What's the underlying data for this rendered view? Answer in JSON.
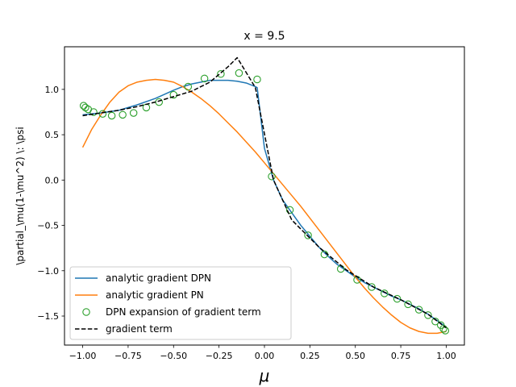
{
  "chart_data": {
    "type": "line",
    "title": "x = 9.5",
    "xlabel": "μ",
    "ylabel": "\\partial_\\mu(1-\\mu^2) \\: \\psi",
    "xlim": [
      -1.1,
      1.1
    ],
    "ylim": [
      -1.82,
      1.47
    ],
    "xticks": [
      -1.0,
      -0.75,
      -0.5,
      -0.25,
      0.0,
      0.25,
      0.5,
      0.75,
      1.0
    ],
    "xtick_labels": [
      "−1.00",
      "−0.75",
      "−0.50",
      "−0.25",
      "0.00",
      "0.25",
      "0.50",
      "0.75",
      "1.00"
    ],
    "yticks": [
      -1.5,
      -1.0,
      -0.5,
      0.0,
      0.5,
      1.0
    ],
    "ytick_labels": [
      "−1.5",
      "−1.0",
      "−0.5",
      "0.0",
      "0.5",
      "1.0"
    ],
    "grid": false,
    "legend_position": "lower-left",
    "series": [
      {
        "name": "analytic gradient DPN",
        "kind": "line",
        "style": "solid",
        "color": "#1f77b4",
        "x": [
          -1.0,
          -0.9,
          -0.8,
          -0.7,
          -0.6,
          -0.5,
          -0.45,
          -0.4,
          -0.35,
          -0.3,
          -0.25,
          -0.2,
          -0.15,
          -0.1,
          -0.05,
          -0.04,
          0.0,
          0.05,
          0.1,
          0.15,
          0.2,
          0.25,
          0.3,
          0.35,
          0.4,
          0.45,
          0.5,
          0.55,
          0.6,
          0.65,
          0.7,
          0.75,
          0.8,
          0.85,
          0.9,
          0.95,
          1.0
        ],
        "y": [
          0.72,
          0.74,
          0.77,
          0.83,
          0.9,
          0.99,
          1.03,
          1.06,
          1.08,
          1.1,
          1.1,
          1.1,
          1.09,
          1.07,
          1.03,
          1.02,
          0.35,
          0.0,
          -0.22,
          -0.36,
          -0.5,
          -0.62,
          -0.74,
          -0.84,
          -0.93,
          -1.0,
          -1.07,
          -1.13,
          -1.18,
          -1.23,
          -1.28,
          -1.32,
          -1.37,
          -1.42,
          -1.48,
          -1.55,
          -1.62
        ]
      },
      {
        "name": "analytic gradient PN",
        "kind": "line",
        "style": "solid",
        "color": "#ff7f0e",
        "x": [
          -1.0,
          -0.95,
          -0.9,
          -0.85,
          -0.8,
          -0.75,
          -0.7,
          -0.65,
          -0.6,
          -0.55,
          -0.5,
          -0.45,
          -0.4,
          -0.35,
          -0.3,
          -0.25,
          -0.2,
          -0.15,
          -0.1,
          -0.05,
          0.0,
          0.05,
          0.1,
          0.15,
          0.2,
          0.25,
          0.3,
          0.35,
          0.4,
          0.45,
          0.5,
          0.55,
          0.6,
          0.65,
          0.7,
          0.75,
          0.8,
          0.85,
          0.9,
          0.95,
          1.0
        ],
        "y": [
          0.36,
          0.56,
          0.72,
          0.86,
          0.97,
          1.04,
          1.08,
          1.1,
          1.11,
          1.1,
          1.08,
          1.03,
          0.97,
          0.9,
          0.82,
          0.73,
          0.63,
          0.53,
          0.42,
          0.31,
          0.19,
          0.07,
          -0.05,
          -0.17,
          -0.29,
          -0.42,
          -0.55,
          -0.68,
          -0.81,
          -0.94,
          -1.07,
          -1.19,
          -1.3,
          -1.4,
          -1.49,
          -1.57,
          -1.63,
          -1.67,
          -1.69,
          -1.69,
          -1.67
        ]
      },
      {
        "name": "DPN expansion of gradient term",
        "kind": "scatter",
        "marker": "open-circle",
        "color": "#2ca02c",
        "x": [
          -0.995,
          -0.985,
          -0.97,
          -0.94,
          -0.89,
          -0.84,
          -0.78,
          -0.72,
          -0.65,
          -0.58,
          -0.5,
          -0.42,
          -0.33,
          -0.24,
          -0.14,
          -0.04,
          0.04,
          0.14,
          0.24,
          0.33,
          0.42,
          0.51,
          0.59,
          0.66,
          0.73,
          0.79,
          0.85,
          0.9,
          0.94,
          0.97,
          0.985,
          0.995
        ],
        "y": [
          0.82,
          0.8,
          0.78,
          0.75,
          0.73,
          0.71,
          0.72,
          0.74,
          0.8,
          0.86,
          0.94,
          1.03,
          1.12,
          1.17,
          1.18,
          1.11,
          0.04,
          -0.33,
          -0.61,
          -0.82,
          -0.98,
          -1.1,
          -1.18,
          -1.25,
          -1.31,
          -1.37,
          -1.43,
          -1.49,
          -1.56,
          -1.6,
          -1.64,
          -1.66
        ]
      },
      {
        "name": "gradient term",
        "kind": "line",
        "style": "dashed",
        "color": "#000000",
        "x": [
          -1.0,
          -0.9,
          -0.8,
          -0.7,
          -0.6,
          -0.5,
          -0.4,
          -0.3,
          -0.2,
          -0.15,
          -0.05,
          0.05,
          0.15,
          0.3,
          0.45,
          0.6,
          0.75,
          0.9,
          1.0
        ],
        "y": [
          0.71,
          0.74,
          0.77,
          0.81,
          0.86,
          0.92,
          0.98,
          1.08,
          1.25,
          1.35,
          1.02,
          0.0,
          -0.44,
          -0.74,
          -0.99,
          -1.18,
          -1.32,
          -1.48,
          -1.63
        ]
      }
    ]
  }
}
